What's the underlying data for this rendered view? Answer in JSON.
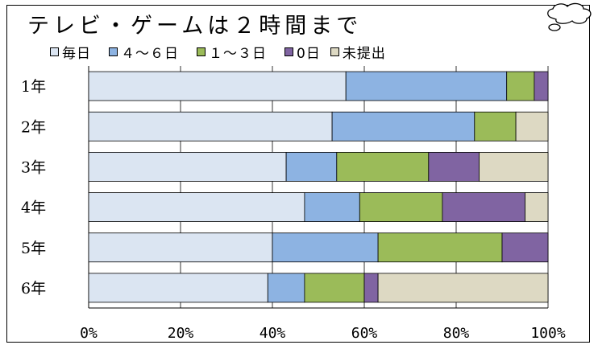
{
  "chart_data": {
    "type": "bar",
    "orientation": "horizontal",
    "stacked": true,
    "normalized": true,
    "title": "テレビ・ゲームは２時間まで",
    "categories": [
      "1年",
      "2年",
      "3年",
      "4年",
      "5年",
      "6年"
    ],
    "series": [
      {
        "name": "毎日",
        "color": "#dbe5f2",
        "values": [
          56,
          53,
          43,
          47,
          40,
          39
        ]
      },
      {
        "name": "４～６日",
        "color": "#8db3e2",
        "values": [
          35,
          31,
          11,
          12,
          23,
          8
        ]
      },
      {
        "name": "１～３日",
        "color": "#9bbb59",
        "values": [
          6,
          9,
          20,
          18,
          27,
          13
        ]
      },
      {
        "name": "0日",
        "color": "#8064a2",
        "values": [
          3,
          0,
          11,
          18,
          10,
          3
        ]
      },
      {
        "name": "未提出",
        "color": "#ddd9c3",
        "values": [
          0,
          7,
          15,
          5,
          0,
          37
        ]
      }
    ],
    "xlim": [
      0,
      100
    ],
    "xticks": [
      "0%",
      "20%",
      "40%",
      "60%",
      "80%",
      "100%"
    ],
    "grid": true,
    "legend": "top"
  }
}
